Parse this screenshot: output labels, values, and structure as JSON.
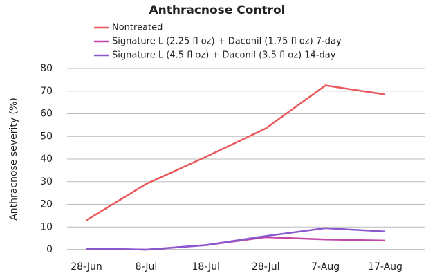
{
  "chart_data": {
    "type": "line",
    "title": "Anthracnose Control",
    "y_label": "Anthracnose severity (%)",
    "categories": [
      "28-Jun",
      "8-Jul",
      "18-Jul",
      "28-Jul",
      "7-Aug",
      "17-Aug"
    ],
    "series": [
      {
        "name": "Nontreated",
        "color": "#e9585b",
        "values": [
          13,
          29,
          41,
          53.5,
          72.5,
          68.5
        ]
      },
      {
        "name": "Signature L (2.25 fl oz) + Daconil (1.75 fl oz) 7-day",
        "color": "#c446a8",
        "values": [
          0.5,
          0,
          2,
          5.5,
          4.5,
          4
        ]
      },
      {
        "name": "Signature L (4.5 fl oz) + Daconil (3.5 fl oz) 14-day",
        "color": "#8957cf",
        "values": [
          0.5,
          0,
          2,
          6,
          9.5,
          8
        ]
      }
    ],
    "ylim": [
      0,
      80
    ],
    "yticks": [
      0,
      10,
      20,
      30,
      40,
      50,
      60,
      70,
      80
    ],
    "grid": true
  }
}
